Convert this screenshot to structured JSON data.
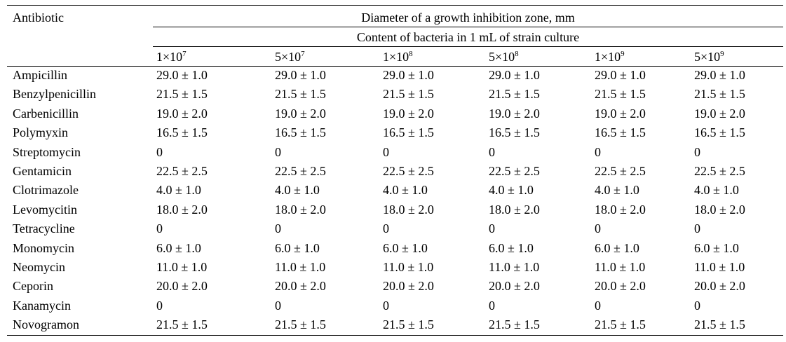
{
  "header": {
    "antibiotic_label": "Antibiotic",
    "group_title": "Diameter of a growth inhibition zone, mm",
    "subgroup_title": "Content of bacteria in 1 mL of strain culture"
  },
  "columns": [
    {
      "base": "1×10",
      "exp": "7"
    },
    {
      "base": "5×10",
      "exp": "7"
    },
    {
      "base": "1×10",
      "exp": "8"
    },
    {
      "base": "5×10",
      "exp": "8"
    },
    {
      "base": "1×10",
      "exp": "9"
    },
    {
      "base": "5×10",
      "exp": "9"
    }
  ],
  "rows": [
    {
      "name": "Ampicillin",
      "values": [
        "29.0 ± 1.0",
        "29.0 ± 1.0",
        "29.0 ± 1.0",
        "29.0 ± 1.0",
        "29.0 ± 1.0",
        "29.0 ± 1.0"
      ]
    },
    {
      "name": "Benzylpenicillin",
      "values": [
        "21.5 ± 1.5",
        "21.5 ± 1.5",
        "21.5 ± 1.5",
        "21.5 ± 1.5",
        "21.5 ± 1.5",
        "21.5 ± 1.5"
      ]
    },
    {
      "name": "Carbenicillin",
      "values": [
        "19.0 ± 2.0",
        "19.0 ± 2.0",
        "19.0 ± 2.0",
        "19.0 ± 2.0",
        "19.0 ± 2.0",
        "19.0 ± 2.0"
      ]
    },
    {
      "name": "Polymyxin",
      "values": [
        "16.5 ± 1.5",
        "16.5 ± 1.5",
        "16.5 ± 1.5",
        "16.5 ± 1.5",
        "16.5 ± 1.5",
        "16.5 ± 1.5"
      ]
    },
    {
      "name": "Streptomycin",
      "values": [
        "0",
        "0",
        "0",
        "0",
        "0",
        "0"
      ]
    },
    {
      "name": "Gentamicin",
      "values": [
        "22.5 ± 2.5",
        "22.5 ± 2.5",
        "22.5 ± 2.5",
        "22.5 ± 2.5",
        "22.5 ± 2.5",
        "22.5 ± 2.5"
      ]
    },
    {
      "name": "Clotrimazole",
      "values": [
        "4.0 ± 1.0",
        "4.0 ± 1.0",
        "4.0 ± 1.0",
        "4.0 ± 1.0",
        "4.0 ± 1.0",
        "4.0 ± 1.0"
      ]
    },
    {
      "name": "Levomycitin",
      "values": [
        "18.0 ± 2.0",
        "18.0 ± 2.0",
        "18.0 ± 2.0",
        "18.0 ± 2.0",
        "18.0 ± 2.0",
        "18.0 ± 2.0"
      ]
    },
    {
      "name": "Tetracycline",
      "values": [
        "0",
        "0",
        "0",
        "0",
        "0",
        "0"
      ]
    },
    {
      "name": "Monomycin",
      "values": [
        "6.0 ± 1.0",
        "6.0 ± 1.0",
        "6.0 ± 1.0",
        "6.0 ± 1.0",
        "6.0 ± 1.0",
        "6.0 ± 1.0"
      ]
    },
    {
      "name": "Neomycin",
      "values": [
        "11.0 ± 1.0",
        "11.0 ± 1.0",
        "11.0 ± 1.0",
        "11.0 ± 1.0",
        "11.0 ± 1.0",
        "11.0 ± 1.0"
      ]
    },
    {
      "name": "Ceporin",
      "values": [
        "20.0 ± 2.0",
        "20.0 ± 2.0",
        "20.0 ± 2.0",
        "20.0 ± 2.0",
        "20.0 ± 2.0",
        "20.0 ± 2.0"
      ]
    },
    {
      "name": "Kanamycin",
      "values": [
        "0",
        "0",
        "0",
        "0",
        "0",
        "0"
      ]
    },
    {
      "name": "Novogramon",
      "values": [
        "21.5 ± 1.5",
        "21.5 ± 1.5",
        "21.5 ± 1.5",
        "21.5 ± 1.5",
        "21.5 ± 1.5",
        "21.5 ± 1.5"
      ]
    }
  ]
}
